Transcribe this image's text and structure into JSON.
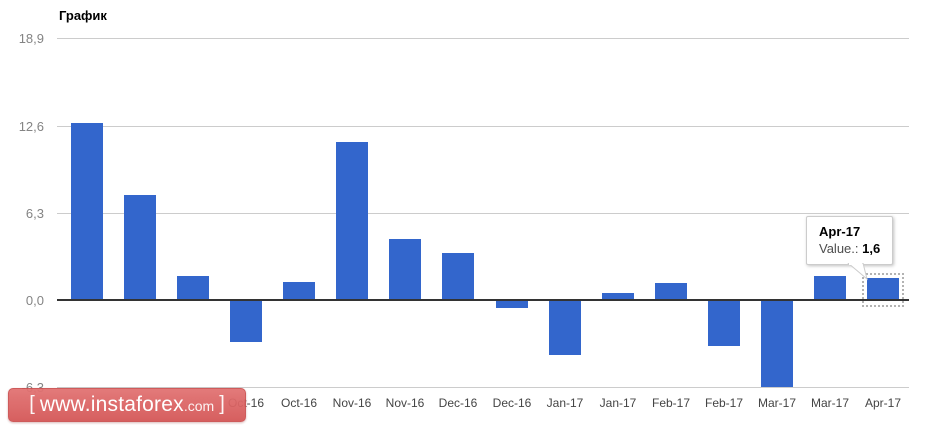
{
  "page": {
    "title": "График"
  },
  "chart_data": {
    "type": "bar",
    "title": "График",
    "categories": [
      "",
      "",
      "",
      "Oct-16",
      "Oct-16",
      "Nov-16",
      "Nov-16",
      "Dec-16",
      "Dec-16",
      "Jan-17",
      "Jan-17",
      "Feb-17",
      "Feb-17",
      "Mar-17",
      "Mar-17",
      "Apr-17"
    ],
    "values": [
      12.8,
      7.6,
      1.7,
      -3.0,
      1.3,
      11.4,
      4.4,
      3.4,
      -0.6,
      -4.0,
      0.5,
      1.2,
      -3.3,
      -6.3,
      1.7,
      1.6
    ],
    "xlabel": "",
    "ylabel": "",
    "y_ticks": [
      {
        "label": "18,9",
        "value": 18.9
      },
      {
        "label": "12,6",
        "value": 12.6
      },
      {
        "label": "6,3",
        "value": 6.3
      },
      {
        "label": "0,0",
        "value": 0.0
      },
      {
        "label": "-6,3",
        "value": -6.3
      }
    ],
    "ylim": [
      -6.3,
      18.9
    ],
    "grid": true,
    "legend": "none",
    "bar_color": "#3366cc",
    "selected_index": 15,
    "selected_category": "Apr-17",
    "selected_value": 1.6
  },
  "tooltip": {
    "month": "Apr-17",
    "value_label": "Value.:",
    "value": "1,6"
  },
  "watermark": {
    "open_bracket": "[",
    "domain": "www.instaforex",
    "tld": ".com",
    "close_bracket": "]"
  },
  "colors": {
    "bar": "#3366cc",
    "gridline": "#cccccc",
    "zero_axis": "#333333",
    "y_tick_text": "#848484",
    "x_tick_text": "#444444",
    "title_text": "#000000",
    "tooltip_border": "#cccccc",
    "watermark_bg": "#d95f5f"
  }
}
